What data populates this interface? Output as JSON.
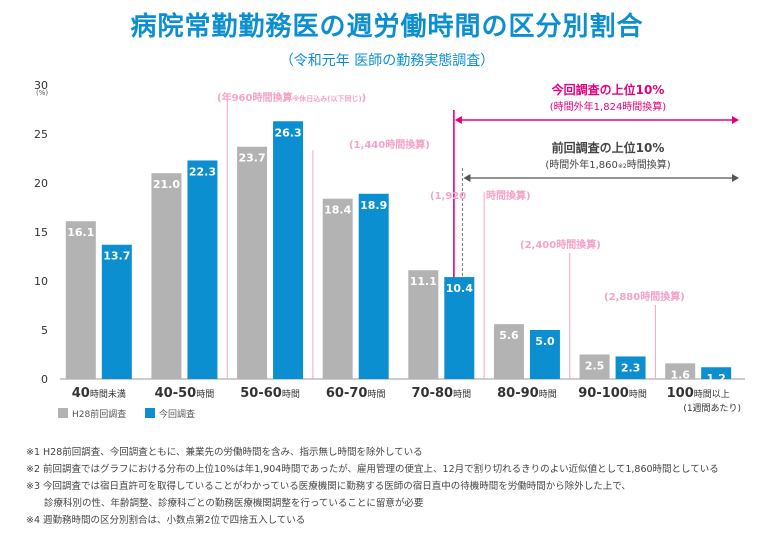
{
  "title": "病院常勤勤務医の週労働時間の区分別割合",
  "subtitle": "（令和元年 医師の勤務実態調査）",
  "colors": {
    "accent": "#0b8fd1",
    "h28": "#b3b3b3",
    "current": "#0b8fd1",
    "pink": "#f5a3c9",
    "magenta": "#e6007e",
    "dark": "#555555"
  },
  "chart_data": {
    "type": "bar",
    "title": "病院常勤勤務医の週労働時間の区分別割合",
    "ylim": [
      0,
      30
    ],
    "yticks": [
      "0",
      "5",
      "10",
      "15",
      "20",
      "25",
      "30"
    ],
    "ylabel_unit": "(%)",
    "categories": [
      {
        "main": "40",
        "unit": "時間未満",
        "sub": ""
      },
      {
        "main": "40-50",
        "unit": "時間",
        "sub": ""
      },
      {
        "main": "50-60",
        "unit": "時間",
        "sub": ""
      },
      {
        "main": "60-70",
        "unit": "時間",
        "sub": ""
      },
      {
        "main": "70-80",
        "unit": "時間",
        "sub": ""
      },
      {
        "main": "80-90",
        "unit": "時間",
        "sub": ""
      },
      {
        "main": "90-100",
        "unit": "時間",
        "sub": ""
      },
      {
        "main": "100",
        "unit": "時間以上",
        "sub": "(1週間あたり)"
      }
    ],
    "series": [
      {
        "name": "H28前回調査",
        "values": [
          16.1,
          21.0,
          23.7,
          18.4,
          11.1,
          5.6,
          2.5,
          1.6
        ],
        "labels": [
          "16.1",
          "21.0",
          "23.7",
          "18.4",
          "11.1",
          "5.6",
          "2.5",
          "1.6"
        ]
      },
      {
        "name": "今回調査",
        "values": [
          13.7,
          22.3,
          26.3,
          18.9,
          10.4,
          5.0,
          2.3,
          1.2
        ],
        "labels": [
          "13.7",
          "22.3",
          "26.3",
          "18.9",
          "10.4",
          "5.0",
          "2.3",
          "1.2"
        ]
      }
    ],
    "annotations": {
      "a960_main": "(年960時間換算",
      "a960_note": "※休日込み(以下同じ)",
      "a960_close": ")",
      "a1440": "(1,440時間換算)",
      "a1920_left": "(1,920",
      "a1920_right": "時間換算)",
      "a2400": "(2,400時間換算)",
      "a2880": "(2,880時間換算)",
      "current_top_title": "今回調査の上位10%",
      "current_top_sub": "(時間外年1,824時間換算)",
      "prev_top_title": "前回調査の上位10%",
      "prev_top_sub_a": "(時間外年1,860",
      "prev_top_sub_sup": "※2",
      "prev_top_sub_b": "時間換算)"
    }
  },
  "notes": [
    "※1 H28前回調査、今回調査ともに、兼業先の労働時間を含み、指示無し時間を除外している",
    "※2 前回調査ではグラフにおける分布の上位10%は年1,904時間であったが、雇用管理の便宜上、12月で割り切れるきりのよい近似値として1,860時間としている",
    "※3 今回調査では宿日直許可を取得していることがわかっている医療機関に勤務する医師の宿日直中の待機時間を労働時間から除外した上で、",
    "診療科別の性、年齢調整、診療科ごとの勤務医療機関調整を行っていることに留意が必要",
    "※4 週勤務時間の区分別割合は、小数点第2位で四捨五入している"
  ]
}
